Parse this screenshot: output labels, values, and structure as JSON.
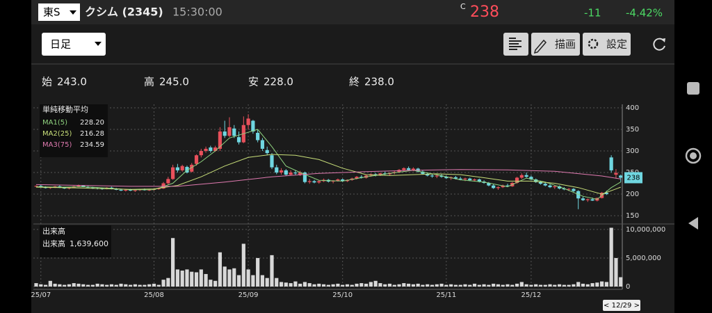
{
  "header": {
    "exchange": "東S",
    "name": "クシム (2345)",
    "time": "15:30:00",
    "price_flag": "C",
    "price": "238",
    "change": "-11",
    "change_pct": "-4.42%"
  },
  "toolbar": {
    "period": "日足",
    "draw": "描画",
    "settings": "設定"
  },
  "ohlc": [
    {
      "label": "始",
      "value": "243.0"
    },
    {
      "label": "高",
      "value": "245.0"
    },
    {
      "label": "安",
      "value": "228.0"
    },
    {
      "label": "終",
      "value": "238.0"
    }
  ],
  "chart": {
    "type": "candlestick",
    "up_color": "#e8505b",
    "down_color": "#6fd6e0",
    "ylim": [
      134,
      408
    ],
    "yticks": [
      150,
      200,
      250,
      300,
      350,
      400
    ],
    "xticks": [
      {
        "value": 1,
        "label": "25/07"
      },
      {
        "value": 25,
        "label": "25/08"
      },
      {
        "value": 45,
        "label": "25/09"
      },
      {
        "value": 65,
        "label": "25/10"
      },
      {
        "value": 87,
        "label": "25/11"
      },
      {
        "value": 105,
        "label": "25/12"
      }
    ],
    "last_price": 238,
    "last_date": "< 12/29 >",
    "legend_title": "単純移動平均",
    "ma": [
      {
        "name": "MA1(5)",
        "last": "228.20",
        "color": "#8fd27f",
        "x": [
          0,
          5,
          10,
          15,
          20,
          25,
          29,
          32,
          35,
          38,
          41,
          44,
          47,
          50,
          53,
          56,
          60,
          65,
          70,
          75,
          80,
          85,
          90,
          95,
          100,
          104,
          108,
          112,
          116,
          119,
          122,
          124
        ],
        "values": [
          217,
          216,
          217,
          214,
          210,
          210,
          225,
          255,
          275,
          300,
          330,
          340,
          350,
          310,
          265,
          250,
          232,
          230,
          240,
          248,
          255,
          245,
          233,
          228,
          217,
          237,
          228,
          213,
          195,
          188,
          215,
          228
        ]
      },
      {
        "name": "MA2(25)",
        "last": "216.28",
        "color": "#c9e07a",
        "x": [
          0,
          10,
          20,
          25,
          30,
          35,
          40,
          45,
          50,
          55,
          60,
          65,
          70,
          75,
          80,
          85,
          90,
          95,
          100,
          105,
          110,
          115,
          120,
          124
        ],
        "values": [
          216,
          214,
          211,
          212,
          220,
          240,
          265,
          285,
          292,
          290,
          280,
          260,
          245,
          243,
          245,
          247,
          245,
          238,
          230,
          230,
          225,
          215,
          200,
          216
        ]
      },
      {
        "name": "MA3(75)",
        "last": "234.59",
        "color": "#e07ab0",
        "x": [
          0,
          10,
          20,
          30,
          40,
          50,
          60,
          70,
          80,
          90,
          100,
          110,
          120,
          124
        ],
        "values": [
          222,
          220,
          218,
          218,
          228,
          240,
          248,
          252,
          255,
          257,
          256,
          253,
          242,
          235
        ]
      }
    ],
    "candles": [
      [
        218,
        220,
        216,
        219
      ],
      [
        219,
        221,
        215,
        216
      ],
      [
        216,
        218,
        213,
        214
      ],
      [
        214,
        217,
        212,
        216
      ],
      [
        216,
        219,
        214,
        218
      ],
      [
        218,
        220,
        214,
        215
      ],
      [
        215,
        217,
        212,
        213
      ],
      [
        213,
        216,
        211,
        215
      ],
      [
        215,
        219,
        214,
        218
      ],
      [
        218,
        222,
        216,
        220
      ],
      [
        220,
        221,
        216,
        217
      ],
      [
        217,
        219,
        214,
        215
      ],
      [
        215,
        217,
        212,
        214
      ],
      [
        214,
        216,
        211,
        213
      ],
      [
        213,
        215,
        210,
        212
      ],
      [
        212,
        216,
        211,
        215
      ],
      [
        215,
        217,
        211,
        212
      ],
      [
        212,
        214,
        209,
        210
      ],
      [
        210,
        212,
        207,
        208
      ],
      [
        208,
        211,
        206,
        210
      ],
      [
        210,
        212,
        207,
        208
      ],
      [
        208,
        210,
        205,
        209
      ],
      [
        209,
        212,
        207,
        211
      ],
      [
        211,
        213,
        208,
        209
      ],
      [
        209,
        212,
        207,
        210
      ],
      [
        210,
        213,
        208,
        212
      ],
      [
        212,
        215,
        210,
        213
      ],
      [
        213,
        228,
        212,
        225
      ],
      [
        225,
        240,
        222,
        235
      ],
      [
        235,
        268,
        233,
        262
      ],
      [
        262,
        270,
        250,
        255
      ],
      [
        255,
        268,
        252,
        265
      ],
      [
        263,
        266,
        248,
        250
      ],
      [
        252,
        272,
        250,
        268
      ],
      [
        270,
        292,
        266,
        290
      ],
      [
        290,
        305,
        285,
        300
      ],
      [
        300,
        310,
        296,
        305
      ],
      [
        308,
        312,
        296,
        300
      ],
      [
        300,
        312,
        298,
        308
      ],
      [
        305,
        355,
        300,
        345
      ],
      [
        345,
        370,
        330,
        335
      ],
      [
        335,
        378,
        332,
        355
      ],
      [
        352,
        360,
        330,
        335
      ],
      [
        332,
        345,
        315,
        320
      ],
      [
        320,
        380,
        318,
        360
      ],
      [
        360,
        385,
        350,
        375
      ],
      [
        370,
        372,
        340,
        345
      ],
      [
        342,
        350,
        320,
        325
      ],
      [
        325,
        330,
        300,
        305
      ],
      [
        302,
        310,
        290,
        295
      ],
      [
        290,
        295,
        258,
        262
      ],
      [
        262,
        268,
        246,
        250
      ],
      [
        250,
        260,
        245,
        255
      ],
      [
        255,
        258,
        242,
        245
      ],
      [
        245,
        255,
        243,
        250
      ],
      [
        250,
        255,
        244,
        248
      ],
      [
        245,
        254,
        242,
        250
      ],
      [
        250,
        252,
        225,
        228
      ],
      [
        228,
        235,
        224,
        230
      ],
      [
        230,
        233,
        225,
        227
      ],
      [
        227,
        232,
        224,
        230
      ],
      [
        230,
        236,
        228,
        233
      ],
      [
        233,
        235,
        227,
        229
      ],
      [
        229,
        232,
        225,
        231
      ],
      [
        231,
        236,
        229,
        234
      ],
      [
        234,
        236,
        228,
        230
      ],
      [
        230,
        234,
        228,
        233
      ],
      [
        233,
        238,
        231,
        236
      ],
      [
        236,
        242,
        234,
        240
      ],
      [
        240,
        244,
        236,
        238
      ],
      [
        238,
        245,
        236,
        243
      ],
      [
        243,
        248,
        240,
        246
      ],
      [
        246,
        249,
        241,
        243
      ],
      [
        243,
        250,
        242,
        248
      ],
      [
        248,
        252,
        244,
        246
      ],
      [
        246,
        250,
        243,
        249
      ],
      [
        249,
        254,
        246,
        251
      ],
      [
        251,
        258,
        249,
        256
      ],
      [
        256,
        262,
        252,
        260
      ],
      [
        260,
        264,
        254,
        256
      ],
      [
        256,
        262,
        253,
        259
      ],
      [
        259,
        261,
        250,
        252
      ],
      [
        252,
        255,
        245,
        247
      ],
      [
        247,
        250,
        241,
        243
      ],
      [
        243,
        246,
        238,
        241
      ],
      [
        241,
        245,
        237,
        243
      ],
      [
        243,
        246,
        238,
        240
      ],
      [
        240,
        243,
        235,
        237
      ],
      [
        237,
        241,
        233,
        239
      ],
      [
        239,
        242,
        234,
        236
      ],
      [
        236,
        240,
        232,
        234
      ],
      [
        234,
        238,
        230,
        236
      ],
      [
        236,
        238,
        230,
        232
      ],
      [
        232,
        236,
        229,
        234
      ],
      [
        234,
        236,
        227,
        229
      ],
      [
        229,
        232,
        224,
        226
      ],
      [
        226,
        228,
        218,
        220
      ],
      [
        220,
        223,
        212,
        214
      ],
      [
        214,
        218,
        210,
        216
      ],
      [
        216,
        222,
        214,
        220
      ],
      [
        220,
        224,
        216,
        218
      ],
      [
        218,
        228,
        217,
        226
      ],
      [
        226,
        240,
        224,
        238
      ],
      [
        238,
        248,
        235,
        244
      ],
      [
        244,
        250,
        238,
        240
      ],
      [
        240,
        243,
        232,
        234
      ],
      [
        234,
        236,
        226,
        228
      ],
      [
        228,
        231,
        222,
        224
      ],
      [
        224,
        227,
        218,
        220
      ],
      [
        220,
        223,
        214,
        216
      ],
      [
        216,
        220,
        212,
        218
      ],
      [
        218,
        220,
        211,
        213
      ],
      [
        213,
        216,
        209,
        211
      ],
      [
        211,
        214,
        207,
        212
      ],
      [
        212,
        214,
        205,
        207
      ],
      [
        207,
        209,
        165,
        190
      ],
      [
        190,
        194,
        184,
        186
      ],
      [
        186,
        190,
        182,
        188
      ],
      [
        188,
        192,
        184,
        185
      ],
      [
        185,
        192,
        183,
        191
      ],
      [
        191,
        205,
        190,
        203
      ],
      [
        203,
        208,
        198,
        200
      ],
      [
        285,
        290,
        250,
        255
      ],
      [
        245,
        258,
        236,
        249
      ],
      [
        243,
        245,
        228,
        238
      ]
    ]
  },
  "volume": {
    "title": "出来高",
    "label": "出来高",
    "last": "1,639,600",
    "color": "#d8d8d8",
    "ylim": [
      0,
      10600000
    ],
    "yticks": [
      0,
      {
        "value": 5000000,
        "label": "5,000,000"
      },
      {
        "value": 10000000,
        "label": "10,000,000"
      }
    ],
    "values": [
      600000,
      400000,
      300000,
      1000000,
      500000,
      400000,
      300000,
      400000,
      600000,
      500000,
      400000,
      300000,
      300000,
      500000,
      400000,
      300000,
      400000,
      300000,
      500000,
      400000,
      300000,
      400000,
      300000,
      300000,
      400000,
      500000,
      300000,
      1200000,
      1500000,
      8500000,
      3000000,
      2800000,
      3000000,
      2600000,
      2500000,
      3000000,
      2200000,
      1200000,
      1000000,
      6000000,
      3500000,
      3000000,
      3200000,
      2000000,
      7500000,
      3000000,
      2000000,
      5000000,
      2000000,
      1500000,
      5500000,
      1500000,
      800000,
      700000,
      600000,
      900000,
      500000,
      800000,
      600000,
      400000,
      500000,
      400000,
      300000,
      400000,
      500000,
      300000,
      400000,
      300000,
      500000,
      600000,
      500000,
      800000,
      1000000,
      600000,
      400000,
      500000,
      300000,
      400000,
      600000,
      500000,
      400000,
      500000,
      300000,
      400000,
      300000,
      400000,
      500000,
      300000,
      400000,
      300000,
      300000,
      400000,
      300000,
      500000,
      300000,
      400000,
      300000,
      500000,
      400000,
      300000,
      400000,
      300000,
      500000,
      800000,
      400000,
      300000,
      400000,
      300000,
      300000,
      400000,
      300000,
      400000,
      300000,
      300000,
      400000,
      800000,
      500000,
      400000,
      600000,
      700000,
      900000,
      800000,
      10300000,
      5000000,
      1639600
    ]
  }
}
